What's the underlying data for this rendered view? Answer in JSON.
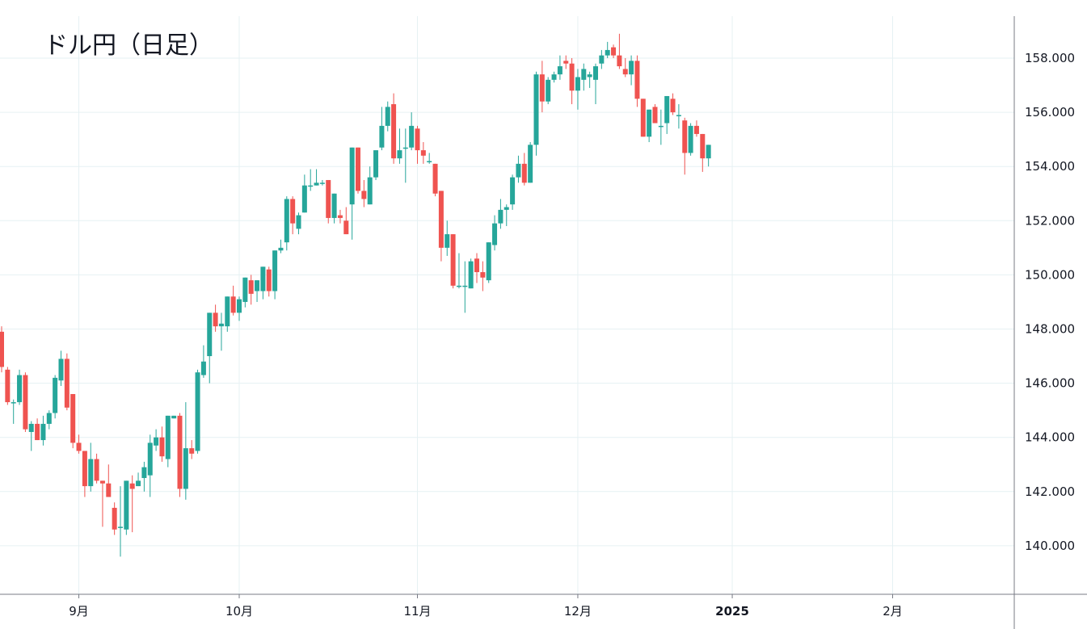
{
  "chart_data": {
    "type": "candlestick",
    "title": "ドル円（日足）",
    "xlabel": "",
    "ylabel": "",
    "ylim": [
      138.7,
      159.5
    ],
    "y_ticks": [
      "140.000",
      "142.000",
      "144.000",
      "146.000",
      "148.000",
      "150.000",
      "152.000",
      "154.000",
      "156.000",
      "158.000"
    ],
    "x_ticks": [
      {
        "index": 13,
        "label": "9月",
        "bold": false
      },
      {
        "index": 40,
        "label": "10月",
        "bold": false
      },
      {
        "index": 70,
        "label": "11月",
        "bold": false
      },
      {
        "index": 97,
        "label": "12月",
        "bold": false
      },
      {
        "index": 123,
        "label": "2025",
        "bold": true
      },
      {
        "index": 150,
        "label": "2月",
        "bold": false
      }
    ],
    "colors": {
      "up": "#26a69a",
      "down": "#ef5350",
      "grid": "#e6f1f3",
      "axis": "#787b86",
      "text": "#131722"
    },
    "candles": [
      [
        147.9,
        148.1,
        146.4,
        146.6
      ],
      [
        146.5,
        146.6,
        145.2,
        145.3
      ],
      [
        145.3,
        145.4,
        144.5,
        145.3
      ],
      [
        145.3,
        146.5,
        145.2,
        146.3
      ],
      [
        146.3,
        146.4,
        144.2,
        144.3
      ],
      [
        144.2,
        144.6,
        143.5,
        144.5
      ],
      [
        144.5,
        144.7,
        143.9,
        143.9
      ],
      [
        143.9,
        144.8,
        143.7,
        144.5
      ],
      [
        144.5,
        145.0,
        144.3,
        144.9
      ],
      [
        144.9,
        146.3,
        144.7,
        146.2
      ],
      [
        146.1,
        147.2,
        145.9,
        146.9
      ],
      [
        146.9,
        147.1,
        145.0,
        145.1
      ],
      [
        145.6,
        145.6,
        143.6,
        143.8
      ],
      [
        143.8,
        144.1,
        143.4,
        143.5
      ],
      [
        143.5,
        143.5,
        141.8,
        142.2
      ],
      [
        142.2,
        143.8,
        142.0,
        143.2
      ],
      [
        143.2,
        143.4,
        142.3,
        142.4
      ],
      [
        142.4,
        142.4,
        140.7,
        142.3
      ],
      [
        142.3,
        143.0,
        141.8,
        141.8
      ],
      [
        141.4,
        141.6,
        140.4,
        140.6
      ],
      [
        140.7,
        142.2,
        139.6,
        140.7
      ],
      [
        140.6,
        142.4,
        140.4,
        142.4
      ],
      [
        142.3,
        142.6,
        140.5,
        142.1
      ],
      [
        142.2,
        142.7,
        142.2,
        142.4
      ],
      [
        142.5,
        143.1,
        142.0,
        142.9
      ],
      [
        142.6,
        144.1,
        141.8,
        143.8
      ],
      [
        143.7,
        144.3,
        143.5,
        144.0
      ],
      [
        144.0,
        144.4,
        143.1,
        143.3
      ],
      [
        143.2,
        144.8,
        142.9,
        144.8
      ],
      [
        144.7,
        144.8,
        144.7,
        144.8
      ],
      [
        144.8,
        144.9,
        141.8,
        142.1
      ],
      [
        142.1,
        145.3,
        141.7,
        143.6
      ],
      [
        143.6,
        143.9,
        143.2,
        143.4
      ],
      [
        143.5,
        146.5,
        143.4,
        146.4
      ],
      [
        146.3,
        147.4,
        146.2,
        146.8
      ],
      [
        147.0,
        148.6,
        146.0,
        148.6
      ],
      [
        148.6,
        148.9,
        147.9,
        148.1
      ],
      [
        148.1,
        148.6,
        147.2,
        148.2
      ],
      [
        148.1,
        149.2,
        147.9,
        149.2
      ],
      [
        149.2,
        149.6,
        148.5,
        148.6
      ],
      [
        148.6,
        149.2,
        148.3,
        149.1
      ],
      [
        149.0,
        149.9,
        148.8,
        149.9
      ],
      [
        149.8,
        150.0,
        148.9,
        149.3
      ],
      [
        149.4,
        149.8,
        149.0,
        149.8
      ],
      [
        149.4,
        150.3,
        149.1,
        150.3
      ],
      [
        150.2,
        150.3,
        149.2,
        149.4
      ],
      [
        149.4,
        150.9,
        149.1,
        150.9
      ],
      [
        150.9,
        151.3,
        150.8,
        151.0
      ],
      [
        151.2,
        152.9,
        150.9,
        152.8
      ],
      [
        152.8,
        152.9,
        151.5,
        151.9
      ],
      [
        151.7,
        152.3,
        151.5,
        152.2
      ],
      [
        152.3,
        153.7,
        152.3,
        153.3
      ],
      [
        153.3,
        153.9,
        153.1,
        153.3
      ],
      [
        153.3,
        153.9,
        153.3,
        153.4
      ],
      [
        153.4,
        153.5,
        153.3,
        153.4
      ],
      [
        153.5,
        153.5,
        151.9,
        152.1
      ],
      [
        152.1,
        153.0,
        151.9,
        153.0
      ],
      [
        152.2,
        152.4,
        151.9,
        152.1
      ],
      [
        152.0,
        152.5,
        151.5,
        151.5
      ],
      [
        152.6,
        154.7,
        151.3,
        154.7
      ],
      [
        154.7,
        154.7,
        153.0,
        153.1
      ],
      [
        153.1,
        153.5,
        152.5,
        152.8
      ],
      [
        152.6,
        154.0,
        152.6,
        153.6
      ],
      [
        153.6,
        154.6,
        153.5,
        154.6
      ],
      [
        154.7,
        156.2,
        154.6,
        155.5
      ],
      [
        155.5,
        156.4,
        155.3,
        156.2
      ],
      [
        156.3,
        156.7,
        154.1,
        154.3
      ],
      [
        154.3,
        155.4,
        154.1,
        154.6
      ],
      [
        154.7,
        155.4,
        153.4,
        154.7
      ],
      [
        154.7,
        156.0,
        154.6,
        155.5
      ],
      [
        155.4,
        155.5,
        154.1,
        154.6
      ],
      [
        154.6,
        154.9,
        154.1,
        154.4
      ],
      [
        154.2,
        154.5,
        154.1,
        154.2
      ],
      [
        154.1,
        154.1,
        152.9,
        153.0
      ],
      [
        153.1,
        153.1,
        150.5,
        151.0
      ],
      [
        151.0,
        152.0,
        150.7,
        151.5
      ],
      [
        151.5,
        151.5,
        149.5,
        149.6
      ],
      [
        149.6,
        150.8,
        149.5,
        149.6
      ],
      [
        149.6,
        150.5,
        148.6,
        149.6
      ],
      [
        149.5,
        150.6,
        149.5,
        150.5
      ],
      [
        150.6,
        150.8,
        149.7,
        150.1
      ],
      [
        150.1,
        150.5,
        149.4,
        149.9
      ],
      [
        149.8,
        151.2,
        149.7,
        151.2
      ],
      [
        151.1,
        152.2,
        150.9,
        151.9
      ],
      [
        151.9,
        152.8,
        151.7,
        152.4
      ],
      [
        152.4,
        152.6,
        151.8,
        152.5
      ],
      [
        152.6,
        153.7,
        152.4,
        153.6
      ],
      [
        153.6,
        154.4,
        153.4,
        154.1
      ],
      [
        154.1,
        154.5,
        153.3,
        153.4
      ],
      [
        153.4,
        154.9,
        153.4,
        154.8
      ],
      [
        154.8,
        157.5,
        154.4,
        157.4
      ],
      [
        157.4,
        157.9,
        156.0,
        156.4
      ],
      [
        156.4,
        157.3,
        156.3,
        157.2
      ],
      [
        157.2,
        157.5,
        157.1,
        157.4
      ],
      [
        157.4,
        158.1,
        157.2,
        157.7
      ],
      [
        157.9,
        158.1,
        157.6,
        157.8
      ],
      [
        157.8,
        158.0,
        156.3,
        156.8
      ],
      [
        156.8,
        157.6,
        156.1,
        157.3
      ],
      [
        157.2,
        157.8,
        156.8,
        157.6
      ],
      [
        157.3,
        157.5,
        156.9,
        157.4
      ],
      [
        157.2,
        157.8,
        156.3,
        157.7
      ],
      [
        157.8,
        158.3,
        157.6,
        158.1
      ],
      [
        158.1,
        158.6,
        158.0,
        158.3
      ],
      [
        158.4,
        158.5,
        158.0,
        158.1
      ],
      [
        158.1,
        158.9,
        157.6,
        157.7
      ],
      [
        157.6,
        158.0,
        157.3,
        157.4
      ],
      [
        157.4,
        158.1,
        157.0,
        157.9
      ],
      [
        157.9,
        158.1,
        156.2,
        156.5
      ],
      [
        156.5,
        156.5,
        155.1,
        155.1
      ],
      [
        155.1,
        156.1,
        154.9,
        156.1
      ],
      [
        156.2,
        156.3,
        155.6,
        155.6
      ],
      [
        155.5,
        156.1,
        154.8,
        155.5
      ],
      [
        155.6,
        156.6,
        155.2,
        156.6
      ],
      [
        156.5,
        156.7,
        155.9,
        156.0
      ],
      [
        155.9,
        156.3,
        155.4,
        155.9
      ],
      [
        155.7,
        155.8,
        153.7,
        154.5
      ],
      [
        154.5,
        155.6,
        154.4,
        155.5
      ],
      [
        155.5,
        155.7,
        155.1,
        155.2
      ],
      [
        155.2,
        155.2,
        153.8,
        154.3
      ],
      [
        154.3,
        154.8,
        154.0,
        154.8
      ]
    ]
  }
}
